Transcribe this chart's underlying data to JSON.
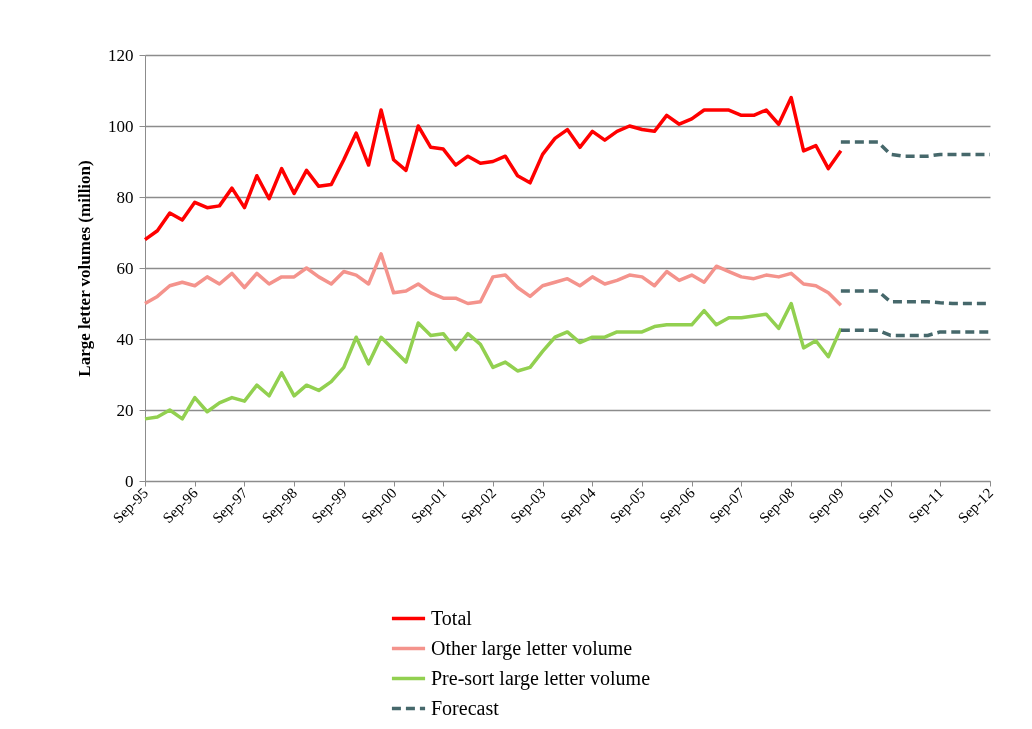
{
  "chart_data": {
    "type": "line",
    "ylabel": "Large letter volumes (million)",
    "xlim": [
      "1995-09",
      "2012-09"
    ],
    "ylim": [
      0,
      120
    ],
    "yticks": [
      0,
      20,
      40,
      60,
      80,
      100,
      120
    ],
    "xticks": [
      {
        "value": "1995-09",
        "label": "Sep-95"
      },
      {
        "value": "1996-09",
        "label": "Sep-96"
      },
      {
        "value": "1997-09",
        "label": "Sep-97"
      },
      {
        "value": "1998-09",
        "label": "Sep-98"
      },
      {
        "value": "1999-09",
        "label": "Sep-99"
      },
      {
        "value": "2000-09",
        "label": "Sep-00"
      },
      {
        "value": "2001-09",
        "label": "Sep-01"
      },
      {
        "value": "2002-09",
        "label": "Sep-02"
      },
      {
        "value": "2003-09",
        "label": "Sep-03"
      },
      {
        "value": "2004-09",
        "label": "Sep-04"
      },
      {
        "value": "2005-09",
        "label": "Sep-05"
      },
      {
        "value": "2006-09",
        "label": "Sep-06"
      },
      {
        "value": "2007-09",
        "label": "Sep-07"
      },
      {
        "value": "2008-09",
        "label": "Sep-08"
      },
      {
        "value": "2009-09",
        "label": "Sep-09"
      },
      {
        "value": "2010-09",
        "label": "Sep-10"
      },
      {
        "value": "2011-09",
        "label": "Sep-11"
      },
      {
        "value": "2012-09",
        "label": "Sep-12"
      }
    ],
    "grid": "y",
    "legend": "bottom",
    "marker": "none",
    "x": [
      "1995-09",
      "1995-12",
      "1996-03",
      "1996-06",
      "1996-09",
      "1996-12",
      "1997-03",
      "1997-06",
      "1997-09",
      "1997-12",
      "1998-03",
      "1998-06",
      "1998-09",
      "1998-12",
      "1999-03",
      "1999-06",
      "1999-09",
      "1999-12",
      "2000-03",
      "2000-06",
      "2000-09",
      "2000-12",
      "2001-03",
      "2001-06",
      "2001-09",
      "2001-12",
      "2002-03",
      "2002-06",
      "2002-09",
      "2002-12",
      "2003-03",
      "2003-06",
      "2003-09",
      "2003-12",
      "2004-03",
      "2004-06",
      "2004-09",
      "2004-12",
      "2005-03",
      "2005-06",
      "2005-09",
      "2005-12",
      "2006-03",
      "2006-06",
      "2006-09",
      "2006-12",
      "2007-03",
      "2007-06",
      "2007-09",
      "2007-12",
      "2008-03",
      "2008-06",
      "2008-09",
      "2008-12",
      "2009-03",
      "2009-06",
      "2009-09"
    ],
    "series": [
      {
        "name": "Total",
        "color": "#ff0000",
        "line_style": "solid",
        "values": [
          68,
          70.5,
          75.5,
          73.5,
          78.5,
          77,
          77.5,
          82.5,
          77,
          86,
          79.5,
          88,
          81,
          87.5,
          83,
          83.5,
          90.5,
          98,
          89,
          104.5,
          90.5,
          87.5,
          100,
          94,
          93.5,
          89,
          91.5,
          89.5,
          90,
          91.5,
          86,
          84,
          92,
          96.5,
          99,
          94,
          98.5,
          96,
          98.5,
          100,
          99,
          98.5,
          103,
          100.5,
          102,
          104.5,
          104.5,
          104.5,
          103,
          103,
          104.5,
          100.5,
          108,
          93,
          94.5,
          88,
          93
        ]
      },
      {
        "name": "Other large letter volume",
        "color": "#f4938c",
        "line_style": "solid",
        "values": [
          50,
          52,
          55,
          56,
          55,
          57.5,
          55.5,
          58.5,
          54.5,
          58.5,
          55.5,
          57.5,
          57.5,
          60,
          57.5,
          55.5,
          59,
          58,
          55.5,
          64,
          53,
          53.5,
          55.5,
          53,
          51.5,
          51.5,
          50,
          50.5,
          57.5,
          58,
          54.5,
          52,
          55,
          56,
          57,
          55,
          57.5,
          55.5,
          56.5,
          58,
          57.5,
          55,
          59,
          56.5,
          58,
          56,
          60.5,
          59,
          57.5,
          57,
          58,
          57.5,
          58.5,
          55.5,
          55,
          53,
          49.5
        ]
      },
      {
        "name": "Pre-sort large letter volume",
        "color": "#92d050",
        "line_style": "solid",
        "values": [
          17.5,
          18,
          20,
          17.5,
          23.5,
          19.5,
          22,
          23.5,
          22.5,
          27,
          24,
          30.5,
          24,
          27,
          25.5,
          28,
          32,
          40.5,
          33,
          40.5,
          37,
          33.5,
          44.5,
          41,
          41.5,
          37,
          41.5,
          38.5,
          32,
          33.5,
          31,
          32,
          36.5,
          40.5,
          42,
          39,
          40.5,
          40.5,
          42,
          42,
          42,
          43.5,
          44,
          44,
          44,
          48,
          44,
          46,
          46,
          46.5,
          47,
          43,
          50,
          37.5,
          39.5,
          35,
          43
        ]
      },
      {
        "name": "Forecast",
        "color": "#46686b",
        "line_style": "dashed",
        "x": [
          "2009-09",
          "2009-12",
          "2010-03",
          "2010-06",
          "2010-09",
          "2010-12",
          "2011-03",
          "2011-06",
          "2011-09",
          "2011-12",
          "2012-03",
          "2012-06",
          "2012-09"
        ],
        "values": [
          95.5,
          95.5,
          95.5,
          95.5,
          92,
          91.5,
          91.5,
          91.5,
          92,
          92,
          92,
          92,
          92
        ]
      },
      {
        "color": "#46686b",
        "line_style": "dashed",
        "x": [
          "2009-09",
          "2009-12",
          "2010-03",
          "2010-06",
          "2010-09",
          "2010-12",
          "2011-03",
          "2011-06",
          "2011-09",
          "2011-12",
          "2012-03",
          "2012-06",
          "2012-09"
        ],
        "values": [
          53.5,
          53.5,
          53.5,
          53.5,
          50.5,
          50.5,
          50.5,
          50.5,
          50.2,
          50,
          50,
          50,
          50
        ]
      },
      {
        "color": "#46686b",
        "line_style": "dashed",
        "x": [
          "2009-09",
          "2009-12",
          "2010-03",
          "2010-06",
          "2010-09",
          "2010-12",
          "2011-03",
          "2011-06",
          "2011-09",
          "2011-12",
          "2012-03",
          "2012-06",
          "2012-09"
        ],
        "values": [
          42.5,
          42.5,
          42.5,
          42.5,
          41,
          41,
          41,
          41,
          42,
          42,
          42,
          42,
          42
        ]
      }
    ]
  }
}
